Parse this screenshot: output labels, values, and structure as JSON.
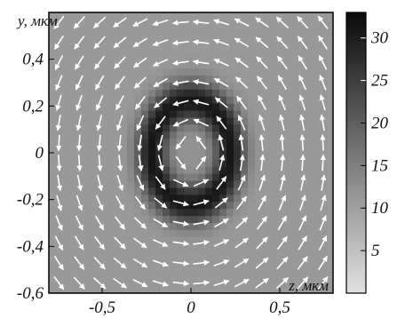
{
  "chart_data": {
    "type": "heatmap",
    "title": "",
    "xlabel": "z, мкм",
    "ylabel": "y, мкм",
    "xlim": [
      -0.8,
      0.8
    ],
    "ylim": [
      -0.6,
      0.6
    ],
    "x_ticks": [
      {
        "value": -0.5,
        "label": "-0,5"
      },
      {
        "value": 0,
        "label": "0"
      },
      {
        "value": 0.5,
        "label": "0,5"
      }
    ],
    "y_ticks": [
      {
        "value": 0.4,
        "label": "0,4"
      },
      {
        "value": 0.2,
        "label": "0,2"
      },
      {
        "value": 0,
        "label": "0"
      },
      {
        "value": -0.2,
        "label": "-0,2"
      },
      {
        "value": -0.4,
        "label": "-0,4"
      },
      {
        "value": -0.6,
        "label": "-0,6"
      }
    ],
    "colorbar": {
      "range": [
        0,
        33
      ],
      "ticks": [
        {
          "value": 5,
          "label": "5"
        },
        {
          "value": 10,
          "label": "10"
        },
        {
          "value": 15,
          "label": "15"
        },
        {
          "value": 20,
          "label": "20"
        },
        {
          "value": 25,
          "label": "25"
        },
        {
          "value": 30,
          "label": "30"
        }
      ],
      "colormap": "grayscale-reversed",
      "low_color": "#d6d6d6",
      "high_color": "#0a0a0a"
    },
    "field": {
      "description_visible": false,
      "ring_radius_um": 0.22,
      "ring_width_um": 0.09,
      "peak_value": 31,
      "background_value": 11,
      "center_value": 14,
      "vector_field": "vortex",
      "vector_color": "#ffffff"
    }
  }
}
